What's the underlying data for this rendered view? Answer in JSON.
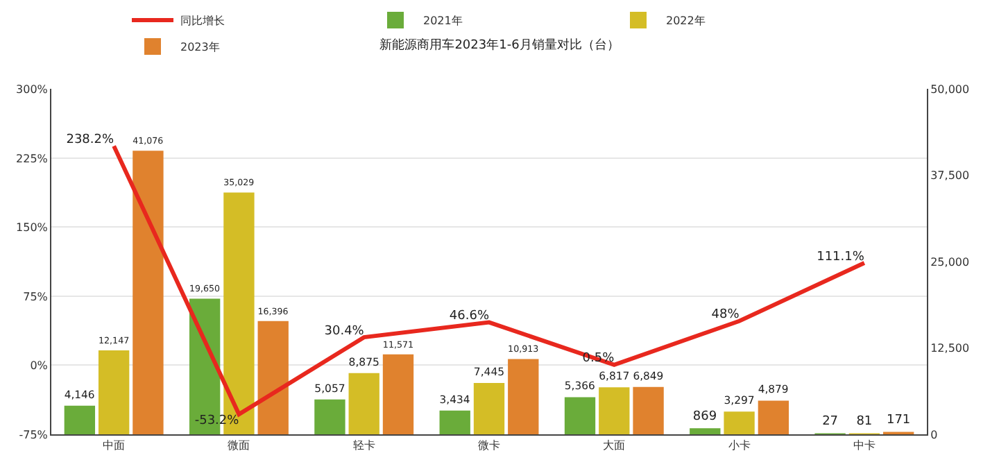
{
  "chart_data": {
    "type": "bar",
    "title": "新能源商用车2023年1-6月销量对比（台）",
    "categories": [
      "中面",
      "微面",
      "轻卡",
      "微卡",
      "大面",
      "小卡",
      "中卡"
    ],
    "series": [
      {
        "name": "同比增长",
        "type": "line",
        "color": "#e8281e",
        "values": [
          238.2,
          -53.2,
          30.4,
          46.6,
          0.5,
          48,
          111.1
        ],
        "value_labels": [
          "238.2%",
          "-53.2%",
          "30.4%",
          "46.6%",
          "0.5%",
          "48%",
          "111.1%"
        ]
      },
      {
        "name": "2021年",
        "color": "#6aac3a",
        "axis": "y2",
        "values": [
          4146,
          19650,
          5057,
          3434,
          5366,
          869,
          27
        ],
        "value_labels": [
          "4,146",
          "19,650",
          "5,057",
          "3,434",
          "5,366",
          "869",
          "27"
        ]
      },
      {
        "name": "2022年",
        "color": "#d4bd26",
        "axis": "y2",
        "values": [
          12147,
          35029,
          8875,
          7445,
          6817,
          3297,
          81
        ],
        "value_labels": [
          "12,147",
          "35,029",
          "8,875",
          "7,445",
          "6,817",
          "3,297",
          "81"
        ]
      },
      {
        "name": "2023年",
        "color": "#e0822e",
        "axis": "y2",
        "values": [
          41076,
          16396,
          11571,
          10913,
          6849,
          4879,
          171
        ],
        "value_labels": [
          "41,076",
          "16,396",
          "11,571",
          "10,913",
          "6,849",
          "4,879",
          "171"
        ]
      }
    ],
    "ylim": [
      -75,
      300
    ],
    "yticks": [
      {
        "value": -75,
        "label": "-75%"
      },
      {
        "value": 0,
        "label": "0%"
      },
      {
        "value": 75,
        "label": "75%"
      },
      {
        "value": 150,
        "label": "150%"
      },
      {
        "value": 225,
        "label": "225%"
      },
      {
        "value": 300,
        "label": "300%"
      }
    ],
    "y2lim": [
      0,
      50000
    ],
    "y2ticks": [
      {
        "value": 0,
        "label": "0"
      },
      {
        "value": 12500,
        "label": "12,500"
      },
      {
        "value": 25000,
        "label": "25,000"
      },
      {
        "value": 37500,
        "label": "37,500"
      },
      {
        "value": 50000,
        "label": "50,000"
      }
    ],
    "grid": "y",
    "legend": "top",
    "line_style": "solid",
    "marker": "none"
  }
}
